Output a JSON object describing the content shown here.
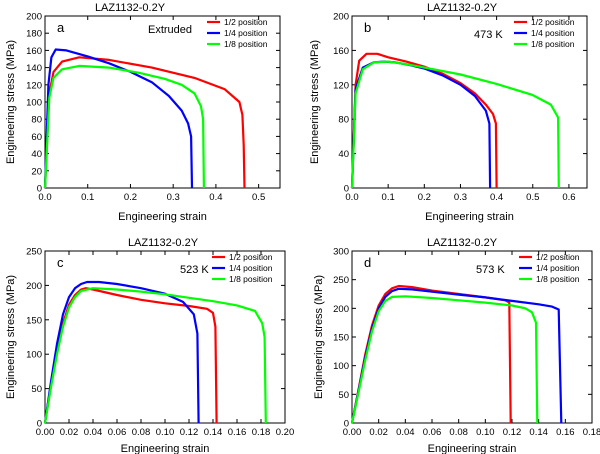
{
  "chart_data": [
    {
      "id": "a",
      "type": "line",
      "title": "LAZ1132-0.2Y",
      "panel_label": "a",
      "annotation": "Extruded",
      "xlabel": "Engineering strain",
      "ylabel": "Engineering stress (MPa)",
      "xlim": [
        0,
        0.55
      ],
      "ylim": [
        0,
        200
      ],
      "xticks": [
        "0.0",
        "0.1",
        "0.2",
        "0.3",
        "0.4",
        "0.5"
      ],
      "xtick_values": [
        0,
        0.1,
        0.2,
        0.3,
        0.4,
        0.5
      ],
      "yticks": [
        "0",
        "20",
        "40",
        "60",
        "80",
        "100",
        "120",
        "140",
        "160",
        "180",
        "200"
      ],
      "ytick_values": [
        0,
        20,
        40,
        60,
        80,
        100,
        120,
        140,
        160,
        180,
        200
      ],
      "series": [
        {
          "name": "1/2 position",
          "color": "#ff0000",
          "points": [
            [
              0,
              0
            ],
            [
              0.01,
              110
            ],
            [
              0.02,
              135
            ],
            [
              0.04,
              147
            ],
            [
              0.08,
              152
            ],
            [
              0.15,
              149
            ],
            [
              0.25,
              140
            ],
            [
              0.35,
              128
            ],
            [
              0.42,
              115
            ],
            [
              0.455,
              100
            ],
            [
              0.462,
              85
            ],
            [
              0.465,
              50
            ],
            [
              0.467,
              0
            ]
          ]
        },
        {
          "name": "1/4 position",
          "color": "#0000ff",
          "points": [
            [
              0,
              0
            ],
            [
              0.008,
              120
            ],
            [
              0.015,
              152
            ],
            [
              0.025,
              161
            ],
            [
              0.05,
              160
            ],
            [
              0.1,
              153
            ],
            [
              0.15,
              145
            ],
            [
              0.2,
              135
            ],
            [
              0.25,
              123
            ],
            [
              0.29,
              107
            ],
            [
              0.32,
              90
            ],
            [
              0.335,
              75
            ],
            [
              0.342,
              60
            ],
            [
              0.344,
              0
            ]
          ]
        },
        {
          "name": "1/8 position",
          "color": "#00ff00",
          "points": [
            [
              0,
              0
            ],
            [
              0.01,
              105
            ],
            [
              0.02,
              128
            ],
            [
              0.04,
              138
            ],
            [
              0.08,
              142
            ],
            [
              0.15,
              140
            ],
            [
              0.22,
              134
            ],
            [
              0.28,
              127
            ],
            [
              0.32,
              120
            ],
            [
              0.35,
              110
            ],
            [
              0.365,
              95
            ],
            [
              0.37,
              80
            ],
            [
              0.372,
              0
            ]
          ]
        }
      ],
      "legend_position": "top-right"
    },
    {
      "id": "b",
      "type": "line",
      "title": "LAZ1132-0.2Y",
      "panel_label": "b",
      "annotation": "473 K",
      "xlabel": "Engineering strain",
      "ylabel": "Engineering stress  (MPa)",
      "xlim": [
        0,
        0.65
      ],
      "ylim": [
        0,
        200
      ],
      "xticks": [
        "0.0",
        "0.1",
        "0.2",
        "0.3",
        "0.4",
        "0.5",
        "0.6"
      ],
      "xtick_values": [
        0,
        0.1,
        0.2,
        0.3,
        0.4,
        0.5,
        0.6
      ],
      "yticks": [
        "0",
        "40",
        "80",
        "120",
        "160",
        "200"
      ],
      "ytick_values": [
        0,
        40,
        80,
        120,
        160,
        200
      ],
      "series": [
        {
          "name": "1/2 position",
          "color": "#ff0000",
          "points": [
            [
              0,
              0
            ],
            [
              0.01,
              120
            ],
            [
              0.02,
              148
            ],
            [
              0.04,
              156
            ],
            [
              0.07,
              156
            ],
            [
              0.1,
              152
            ],
            [
              0.15,
              147
            ],
            [
              0.2,
              141
            ],
            [
              0.25,
              133
            ],
            [
              0.3,
              122
            ],
            [
              0.34,
              110
            ],
            [
              0.37,
              97
            ],
            [
              0.39,
              86
            ],
            [
              0.398,
              75
            ],
            [
              0.4,
              0
            ]
          ]
        },
        {
          "name": "1/4 position",
          "color": "#0000ff",
          "points": [
            [
              0,
              0
            ],
            [
              0.01,
              115
            ],
            [
              0.03,
              140
            ],
            [
              0.06,
              146
            ],
            [
              0.09,
              147
            ],
            [
              0.12,
              146
            ],
            [
              0.16,
              143
            ],
            [
              0.2,
              139
            ],
            [
              0.25,
              131
            ],
            [
              0.3,
              120
            ],
            [
              0.34,
              107
            ],
            [
              0.37,
              90
            ],
            [
              0.38,
              75
            ],
            [
              0.382,
              0
            ]
          ]
        },
        {
          "name": "1/8 position",
          "color": "#00ff00",
          "points": [
            [
              0,
              0
            ],
            [
              0.01,
              110
            ],
            [
              0.03,
              138
            ],
            [
              0.06,
              146
            ],
            [
              0.1,
              147
            ],
            [
              0.15,
              144
            ],
            [
              0.2,
              140
            ],
            [
              0.3,
              132
            ],
            [
              0.4,
              121
            ],
            [
              0.5,
              108
            ],
            [
              0.55,
              97
            ],
            [
              0.57,
              82
            ],
            [
              0.572,
              0
            ]
          ]
        }
      ],
      "legend_position": "top-right"
    },
    {
      "id": "c",
      "type": "line",
      "title": "LAZ1132-0.2Y",
      "panel_label": "c",
      "annotation": "523 K",
      "xlabel": "Engineering strain",
      "ylabel": "Engineering stress (MPa)",
      "xlim": [
        0,
        0.2
      ],
      "ylim": [
        0,
        250
      ],
      "xticks": [
        "0.00",
        "0.02",
        "0.04",
        "0.06",
        "0.08",
        "0.10",
        "0.12",
        "0.14",
        "0.16",
        "0.18",
        "0.20"
      ],
      "xtick_values": [
        0,
        0.02,
        0.04,
        0.06,
        0.08,
        0.1,
        0.12,
        0.14,
        0.16,
        0.18,
        0.2
      ],
      "yticks": [
        "0",
        "50",
        "100",
        "150",
        "200",
        "250"
      ],
      "ytick_values": [
        0,
        50,
        100,
        150,
        200,
        250
      ],
      "series": [
        {
          "name": "1/2 position",
          "color": "#ff0000",
          "points": [
            [
              0,
              0
            ],
            [
              0.005,
              55
            ],
            [
              0.01,
              105
            ],
            [
              0.015,
              145
            ],
            [
              0.02,
              172
            ],
            [
              0.025,
              186
            ],
            [
              0.03,
              194
            ],
            [
              0.034,
              196
            ],
            [
              0.04,
              194
            ],
            [
              0.06,
              186
            ],
            [
              0.08,
              179
            ],
            [
              0.1,
              174
            ],
            [
              0.12,
              170
            ],
            [
              0.135,
              166
            ],
            [
              0.14,
              160
            ],
            [
              0.142,
              140
            ],
            [
              0.143,
              0
            ]
          ]
        },
        {
          "name": "1/4 position",
          "color": "#0000ff",
          "points": [
            [
              0,
              0
            ],
            [
              0.005,
              60
            ],
            [
              0.01,
              115
            ],
            [
              0.015,
              158
            ],
            [
              0.02,
              183
            ],
            [
              0.025,
              196
            ],
            [
              0.03,
              202
            ],
            [
              0.035,
              205
            ],
            [
              0.045,
              205
            ],
            [
              0.06,
              202
            ],
            [
              0.08,
              196
            ],
            [
              0.1,
              188
            ],
            [
              0.115,
              176
            ],
            [
              0.124,
              158
            ],
            [
              0.127,
              130
            ],
            [
              0.128,
              0
            ]
          ]
        },
        {
          "name": "1/8 position",
          "color": "#00ff00",
          "points": [
            [
              0,
              0
            ],
            [
              0.005,
              52
            ],
            [
              0.01,
              100
            ],
            [
              0.015,
              140
            ],
            [
              0.02,
              168
            ],
            [
              0.025,
              183
            ],
            [
              0.03,
              192
            ],
            [
              0.04,
              196
            ],
            [
              0.06,
              194
            ],
            [
              0.08,
              191
            ],
            [
              0.1,
              187
            ],
            [
              0.12,
              182
            ],
            [
              0.14,
              177
            ],
            [
              0.16,
              171
            ],
            [
              0.175,
              163
            ],
            [
              0.181,
              145
            ],
            [
              0.183,
              125
            ],
            [
              0.184,
              0
            ]
          ]
        }
      ],
      "legend_position": "top-right"
    },
    {
      "id": "d",
      "type": "line",
      "title": "LAZ1132-0.2Y",
      "panel_label": "d",
      "annotation": "573 K",
      "xlabel": "Engineering strain",
      "ylabel": "Engineering stress  (MPa)",
      "xlim": [
        0,
        0.18
      ],
      "ylim": [
        0,
        300
      ],
      "xticks": [
        "0.00",
        "0.02",
        "0.04",
        "0.06",
        "0.08",
        "0.10",
        "0.12",
        "0.14",
        "0.16",
        "0.18"
      ],
      "xtick_values": [
        0,
        0.02,
        0.04,
        0.06,
        0.08,
        0.1,
        0.12,
        0.14,
        0.16,
        0.18
      ],
      "yticks": [
        "0",
        "50",
        "100",
        "150",
        "200",
        "250",
        "300"
      ],
      "ytick_values": [
        0,
        50,
        100,
        150,
        200,
        250,
        300
      ],
      "series": [
        {
          "name": "1/2 position",
          "color": "#ff0000",
          "points": [
            [
              0,
              0
            ],
            [
              0.005,
              60
            ],
            [
              0.01,
              120
            ],
            [
              0.015,
              170
            ],
            [
              0.02,
              205
            ],
            [
              0.025,
              225
            ],
            [
              0.03,
              235
            ],
            [
              0.035,
              239
            ],
            [
              0.045,
              237
            ],
            [
              0.06,
              231
            ],
            [
              0.08,
              225
            ],
            [
              0.1,
              219
            ],
            [
              0.115,
              214
            ],
            [
              0.118,
              210
            ],
            [
              0.119,
              0
            ]
          ]
        },
        {
          "name": "1/4 position",
          "color": "#0000ff",
          "points": [
            [
              0,
              0
            ],
            [
              0.005,
              58
            ],
            [
              0.01,
              115
            ],
            [
              0.015,
              165
            ],
            [
              0.02,
              200
            ],
            [
              0.025,
              220
            ],
            [
              0.03,
              230
            ],
            [
              0.035,
              234
            ],
            [
              0.045,
              233
            ],
            [
              0.06,
              229
            ],
            [
              0.08,
              224
            ],
            [
              0.1,
              219
            ],
            [
              0.12,
              213
            ],
            [
              0.14,
              207
            ],
            [
              0.15,
              203
            ],
            [
              0.155,
              198
            ],
            [
              0.157,
              0
            ]
          ]
        },
        {
          "name": "1/8 position",
          "color": "#00ff00",
          "points": [
            [
              0,
              0
            ],
            [
              0.005,
              55
            ],
            [
              0.01,
              110
            ],
            [
              0.015,
              160
            ],
            [
              0.02,
              195
            ],
            [
              0.025,
              213
            ],
            [
              0.03,
              220
            ],
            [
              0.04,
              221
            ],
            [
              0.06,
              218
            ],
            [
              0.08,
              214
            ],
            [
              0.1,
              210
            ],
            [
              0.12,
              205
            ],
            [
              0.13,
              200
            ],
            [
              0.135,
              193
            ],
            [
              0.138,
              175
            ],
            [
              0.139,
              0
            ]
          ]
        }
      ],
      "legend_position": "top-right"
    }
  ]
}
